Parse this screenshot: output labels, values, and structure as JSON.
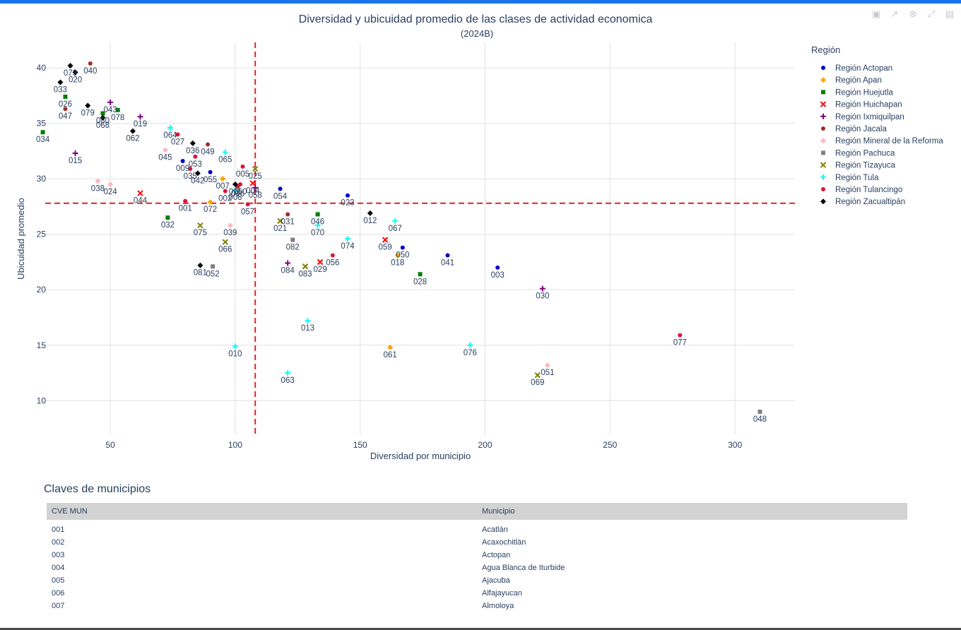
{
  "toolbar": {
    "icons": [
      "camera-icon",
      "autoscale-icon",
      "reset-icon",
      "zoom-icon",
      "spike-icon"
    ]
  },
  "chart_data": {
    "type": "scatter",
    "title": "Diversidad y ubicuidad promedio de las clases de actividad economica",
    "subtitle": "(2024B)",
    "xlabel": "Diversidad por municipio",
    "ylabel": "Ubicuidad promedio",
    "xlim": [
      20,
      324
    ],
    "ylim": [
      6.9,
      42.3
    ],
    "xticks": [
      50,
      100,
      150,
      200,
      250,
      300
    ],
    "yticks": [
      10,
      15,
      20,
      25,
      30,
      35,
      40
    ],
    "grid": true,
    "reference_lines": {
      "x": 108,
      "y": 27.8,
      "color": "#d62728",
      "style": "dashed"
    },
    "legend": {
      "title": "Región",
      "position": "right"
    },
    "series": [
      {
        "name": "Región Actopan",
        "color": "#0000cd",
        "symbol": "circle",
        "points": [
          {
            "x": 205,
            "y": 22.0,
            "label": "003"
          },
          {
            "x": 79,
            "y": 31.6,
            "label": "009"
          },
          {
            "x": 145,
            "y": 28.5,
            "label": "023"
          },
          {
            "x": 185,
            "y": 23.1,
            "label": "041"
          },
          {
            "x": 167,
            "y": 23.8,
            "label": "050"
          },
          {
            "x": 118,
            "y": 29.1,
            "label": "054"
          },
          {
            "x": 90,
            "y": 30.6,
            "label": "055"
          }
        ]
      },
      {
        "name": "Región Apan",
        "color": "#ffa500",
        "symbol": "diamond",
        "points": [
          {
            "x": 95,
            "y": 30.0,
            "label": "007"
          },
          {
            "x": 90,
            "y": 27.9,
            "label": "072"
          },
          {
            "x": 162,
            "y": 14.8,
            "label": "061"
          },
          {
            "x": 165,
            "y": 23.1,
            "label": "018"
          }
        ]
      },
      {
        "name": "Región Huejutla",
        "color": "#008000",
        "symbol": "square",
        "points": [
          {
            "x": 23,
            "y": 34.2,
            "label": "034"
          },
          {
            "x": 32,
            "y": 37.4,
            "label": "026"
          },
          {
            "x": 47,
            "y": 35.9,
            "label": "080"
          },
          {
            "x": 53,
            "y": 36.2,
            "label": "078"
          },
          {
            "x": 73,
            "y": 26.5,
            "label": "032"
          },
          {
            "x": 133,
            "y": 26.8,
            "label": "046"
          },
          {
            "x": 174,
            "y": 21.4,
            "label": "028"
          }
        ]
      },
      {
        "name": "Región Huichapan",
        "color": "#ff0000",
        "symbol": "x",
        "points": [
          {
            "x": 62,
            "y": 28.7,
            "label": "044"
          },
          {
            "x": 160,
            "y": 24.5,
            "label": "059"
          },
          {
            "x": 134,
            "y": 22.5,
            "label": "029"
          },
          {
            "x": 107,
            "y": 29.6,
            "label": "004"
          }
        ]
      },
      {
        "name": "Región Ixmiquilpan",
        "color": "#800080",
        "symbol": "cross",
        "points": [
          {
            "x": 36,
            "y": 32.3,
            "label": "015"
          },
          {
            "x": 50,
            "y": 36.9,
            "label": "043"
          },
          {
            "x": 62,
            "y": 35.6,
            "label": "019"
          },
          {
            "x": 121,
            "y": 22.4,
            "label": "084"
          },
          {
            "x": 223,
            "y": 20.1,
            "label": "030"
          },
          {
            "x": 108,
            "y": 29.2,
            "label": "058"
          }
        ]
      },
      {
        "name": "Región Jacala",
        "color": "#a52a2a",
        "symbol": "circle",
        "points": [
          {
            "x": 42,
            "y": 40.4,
            "label": "040"
          },
          {
            "x": 32,
            "y": 36.3,
            "label": "047"
          },
          {
            "x": 89,
            "y": 33.1,
            "label": "049"
          },
          {
            "x": 121,
            "y": 26.8,
            "label": "031"
          },
          {
            "x": 101,
            "y": 29.3,
            "label": "016"
          }
        ]
      },
      {
        "name": "Región Mineral de la Reforma",
        "color": "#ffb6c1",
        "symbol": "diamond",
        "points": [
          {
            "x": 45,
            "y": 29.8,
            "label": "038"
          },
          {
            "x": 50,
            "y": 29.5,
            "label": "024"
          },
          {
            "x": 72,
            "y": 32.6,
            "label": "045"
          },
          {
            "x": 98,
            "y": 25.8,
            "label": "039"
          },
          {
            "x": 225,
            "y": 13.2,
            "label": "051"
          }
        ]
      },
      {
        "name": "Región Pachuca",
        "color": "#808080",
        "symbol": "square",
        "points": [
          {
            "x": 91,
            "y": 22.1,
            "label": "052"
          },
          {
            "x": 123,
            "y": 24.5,
            "label": "082"
          },
          {
            "x": 310,
            "y": 9.0,
            "label": "048"
          }
        ]
      },
      {
        "name": "Región Tizayuca",
        "color": "#808000",
        "symbol": "x",
        "points": [
          {
            "x": 86,
            "y": 25.8,
            "label": "075"
          },
          {
            "x": 96,
            "y": 24.3,
            "label": "066"
          },
          {
            "x": 128,
            "y": 22.1,
            "label": "083"
          },
          {
            "x": 221,
            "y": 12.3,
            "label": "069"
          },
          {
            "x": 108,
            "y": 30.9,
            "label": "025"
          },
          {
            "x": 118,
            "y": 26.2,
            "label": "021"
          }
        ]
      },
      {
        "name": "Región Tula",
        "color": "#00ffff",
        "symbol": "cross",
        "points": [
          {
            "x": 74,
            "y": 34.6,
            "label": "064"
          },
          {
            "x": 96,
            "y": 32.4,
            "label": "065"
          },
          {
            "x": 100,
            "y": 14.9,
            "label": "010"
          },
          {
            "x": 121,
            "y": 12.5,
            "label": "063"
          },
          {
            "x": 129,
            "y": 17.2,
            "label": "013"
          },
          {
            "x": 145,
            "y": 24.6,
            "label": "074"
          },
          {
            "x": 133,
            "y": 25.8,
            "label": "070"
          },
          {
            "x": 164,
            "y": 26.2,
            "label": "067"
          },
          {
            "x": 194,
            "y": 15.0,
            "label": "076"
          },
          {
            "x": 100,
            "y": 29.0,
            "label": "008"
          }
        ]
      },
      {
        "name": "Región Tulancingo",
        "color": "#dc143c",
        "symbol": "circle",
        "points": [
          {
            "x": 77,
            "y": 34.0,
            "label": "027"
          },
          {
            "x": 80,
            "y": 28.0,
            "label": "001"
          },
          {
            "x": 82,
            "y": 30.9,
            "label": "035"
          },
          {
            "x": 84,
            "y": 32.0,
            "label": "053"
          },
          {
            "x": 96,
            "y": 28.9,
            "label": "002"
          },
          {
            "x": 103,
            "y": 31.1,
            "label": "005"
          },
          {
            "x": 105,
            "y": 27.7,
            "label": "057"
          },
          {
            "x": 139,
            "y": 23.1,
            "label": "056"
          },
          {
            "x": 278,
            "y": 15.9,
            "label": "077"
          },
          {
            "x": 102,
            "y": 29.5,
            "label": "060"
          }
        ]
      },
      {
        "name": "Región Zacualtipán",
        "color": "#000000",
        "symbol": "diamond",
        "points": [
          {
            "x": 34,
            "y": 40.2,
            "label": "073"
          },
          {
            "x": 36,
            "y": 39.6,
            "label": "020"
          },
          {
            "x": 30,
            "y": 38.7,
            "label": "033"
          },
          {
            "x": 41,
            "y": 36.6,
            "label": "079"
          },
          {
            "x": 47,
            "y": 35.5,
            "label": "068"
          },
          {
            "x": 59,
            "y": 34.3,
            "label": "062"
          },
          {
            "x": 83,
            "y": 33.2,
            "label": "036"
          },
          {
            "x": 85,
            "y": 30.5,
            "label": "042"
          },
          {
            "x": 86,
            "y": 22.2,
            "label": "081"
          },
          {
            "x": 154,
            "y": 26.9,
            "label": "012"
          },
          {
            "x": 100,
            "y": 29.5,
            "label": "011"
          }
        ]
      }
    ]
  },
  "table": {
    "title": "Claves de municipios",
    "headers": [
      "CVE MUN",
      "Municipio"
    ],
    "rows": [
      [
        "001",
        "Acatlán"
      ],
      [
        "002",
        "Acaxochitlán"
      ],
      [
        "003",
        "Actopan"
      ],
      [
        "004",
        "Agua Blanca de Iturbide"
      ],
      [
        "005",
        "Ajacuba"
      ],
      [
        "006",
        "Alfajayucan"
      ],
      [
        "007",
        "Almoloya"
      ]
    ]
  }
}
